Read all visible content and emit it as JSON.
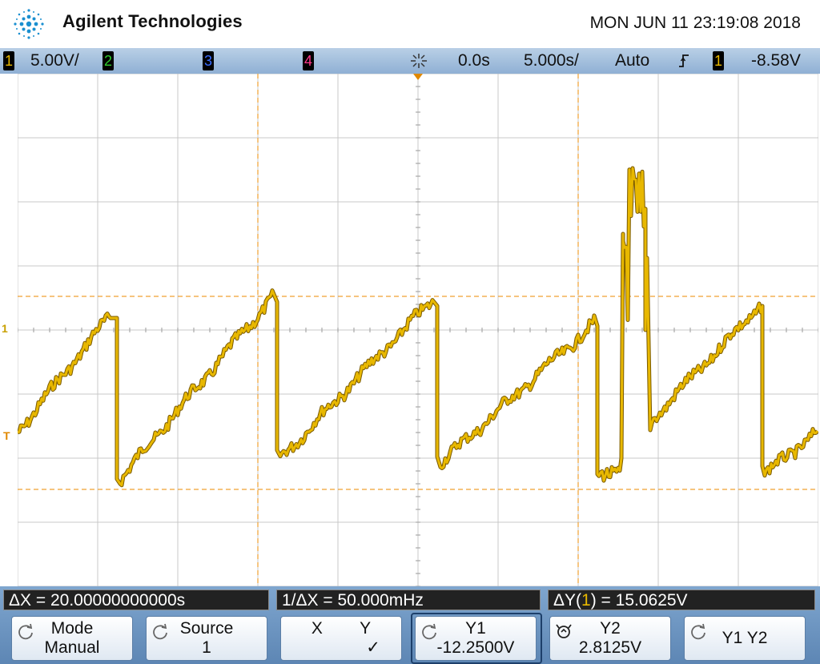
{
  "header": {
    "brand": "Agilent Technologies",
    "datetime": "MON JUN 11 23:19:08 2018"
  },
  "statusbar": {
    "ch1_label": "1",
    "ch1_scale": "5.00V/",
    "ch2_label": "2",
    "ch3_label": "3",
    "ch4_label": "4",
    "time_delay": "0.0s",
    "time_scale": "5.000s/",
    "trigger_mode": "Auto",
    "trigger_slope_icon": "rising-edge-icon",
    "trigger_source": "1",
    "trigger_level": "-8.58V"
  },
  "colors": {
    "ch1": "#e8b800",
    "ch2": "#2ecc2e",
    "ch3": "#3a6dff",
    "ch4": "#ff3a8c",
    "cursor": "#f0a030",
    "grid": "#c8c8c8"
  },
  "readouts": {
    "delta_x": "ΔX = 20.00000000000s",
    "inv_delta_x": "1/ΔX = 50.000mHz",
    "delta_y_prefix": "ΔY(",
    "delta_y_channel": "1",
    "delta_y_suffix": ") = 15.0625V"
  },
  "softkeys": [
    {
      "line1": "Mode",
      "line2": "Manual"
    },
    {
      "line1": "Source",
      "line2": "1"
    },
    {
      "line1": "X        Y",
      "line2": "✓"
    },
    {
      "line1": "Y1",
      "line2": "-12.2500V"
    },
    {
      "line1": "Y2",
      "line2": "2.8125V"
    },
    {
      "line1": "Y1 Y2",
      "line2": ""
    }
  ],
  "markers": {
    "ch1_ground": "1",
    "trigger": "T"
  }
}
